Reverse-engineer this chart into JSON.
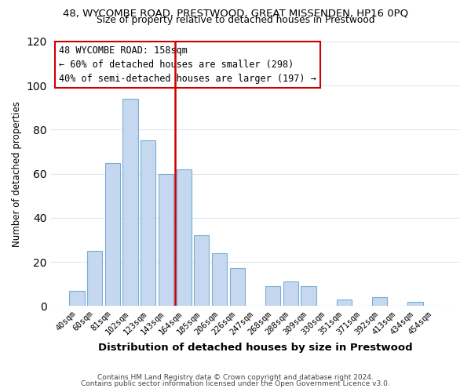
{
  "title_line1": "48, WYCOMBE ROAD, PRESTWOOD, GREAT MISSENDEN, HP16 0PQ",
  "title_line2": "Size of property relative to detached houses in Prestwood",
  "xlabel": "Distribution of detached houses by size in Prestwood",
  "ylabel": "Number of detached properties",
  "categories": [
    "40sqm",
    "60sqm",
    "81sqm",
    "102sqm",
    "123sqm",
    "143sqm",
    "164sqm",
    "185sqm",
    "206sqm",
    "226sqm",
    "247sqm",
    "268sqm",
    "288sqm",
    "309sqm",
    "330sqm",
    "351sqm",
    "371sqm",
    "392sqm",
    "413sqm",
    "434sqm",
    "454sqm"
  ],
  "values": [
    7,
    25,
    65,
    94,
    75,
    60,
    62,
    32,
    24,
    17,
    0,
    9,
    11,
    9,
    0,
    3,
    0,
    4,
    0,
    2,
    0
  ],
  "bar_color": "#c5d8f0",
  "bar_edge_color": "#7aadd4",
  "vline_color": "#cc0000",
  "annotation_title": "48 WYCOMBE ROAD: 158sqm",
  "annotation_line1": "← 60% of detached houses are smaller (298)",
  "annotation_line2": "40% of semi-detached houses are larger (197) →",
  "annotation_box_color": "#ffffff",
  "annotation_box_edge_color": "#cc0000",
  "ylim": [
    0,
    120
  ],
  "yticks": [
    0,
    20,
    40,
    60,
    80,
    100,
    120
  ],
  "footer1": "Contains HM Land Registry data © Crown copyright and database right 2024.",
  "footer2": "Contains public sector information licensed under the Open Government Licence v3.0.",
  "bg_color": "#ffffff",
  "grid_color": "#dce8f0"
}
